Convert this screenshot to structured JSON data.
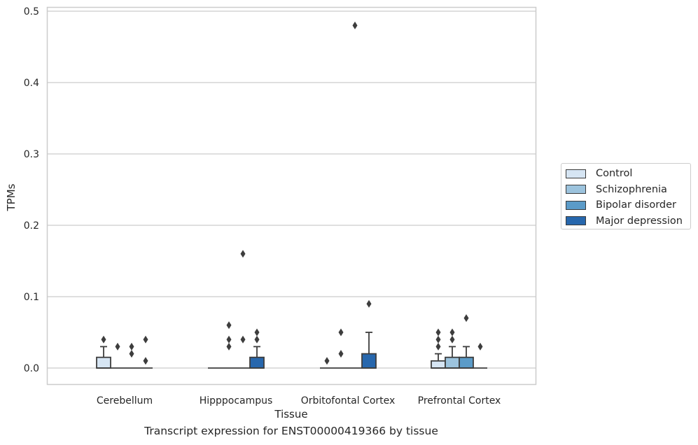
{
  "chart_data": {
    "type": "box",
    "caption": "Transcript expression for ENST00000419366 by tissue",
    "xlabel": "Tissue",
    "ylabel": "TPMs",
    "ylim": [
      -0.023,
      0.505
    ],
    "yticks": [
      0.0,
      0.1,
      0.2,
      0.3,
      0.4,
      0.5
    ],
    "ytick_labels": [
      "0.0",
      "0.1",
      "0.2",
      "0.3",
      "0.4",
      "0.5"
    ],
    "grid": "horizontal",
    "legend_position": "right",
    "categories": [
      "Cerebellum",
      "Hipppocampus",
      "Orbitofontal Cortex",
      "Prefrontal Cortex"
    ],
    "series": [
      {
        "name": "Control",
        "color": "#d6e5f3",
        "boxes": [
          {
            "q1": 0.0,
            "median": 0.0,
            "q3": 0.015,
            "whisker_low": 0.0,
            "whisker_high": 0.03,
            "outliers": [
              0.04
            ]
          },
          {
            "q1": 0.0,
            "median": 0.0,
            "q3": 0.0,
            "whisker_low": 0.0,
            "whisker_high": 0.0,
            "outliers": []
          },
          {
            "q1": 0.0,
            "median": 0.0,
            "q3": 0.0,
            "whisker_low": 0.0,
            "whisker_high": 0.0,
            "outliers": [
              0.01
            ]
          },
          {
            "q1": 0.0,
            "median": 0.0,
            "q3": 0.01,
            "whisker_low": 0.0,
            "whisker_high": 0.02,
            "outliers": [
              0.03,
              0.04,
              0.05
            ]
          }
        ]
      },
      {
        "name": "Schizophrenia",
        "color": "#9cc3dd",
        "boxes": [
          {
            "q1": 0.0,
            "median": 0.0,
            "q3": 0.0,
            "whisker_low": 0.0,
            "whisker_high": 0.0,
            "outliers": [
              0.03
            ]
          },
          {
            "q1": 0.0,
            "median": 0.0,
            "q3": 0.0,
            "whisker_low": 0.0,
            "whisker_high": 0.0,
            "outliers": [
              0.03,
              0.04,
              0.06
            ]
          },
          {
            "q1": 0.0,
            "median": 0.0,
            "q3": 0.0,
            "whisker_low": 0.0,
            "whisker_high": 0.0,
            "outliers": [
              0.02,
              0.05
            ]
          },
          {
            "q1": 0.0,
            "median": 0.0,
            "q3": 0.015,
            "whisker_low": 0.0,
            "whisker_high": 0.03,
            "outliers": [
              0.04,
              0.05
            ]
          }
        ]
      },
      {
        "name": "Bipolar disorder",
        "color": "#5b9bc8",
        "boxes": [
          {
            "q1": 0.0,
            "median": 0.0,
            "q3": 0.0,
            "whisker_low": 0.0,
            "whisker_high": 0.0,
            "outliers": [
              0.02,
              0.03
            ]
          },
          {
            "q1": 0.0,
            "median": 0.0,
            "q3": 0.0,
            "whisker_low": 0.0,
            "whisker_high": 0.0,
            "outliers": [
              0.04,
              0.16
            ]
          },
          {
            "q1": 0.0,
            "median": 0.0,
            "q3": 0.0,
            "whisker_low": 0.0,
            "whisker_high": 0.0,
            "outliers": [
              0.48
            ]
          },
          {
            "q1": 0.0,
            "median": 0.0,
            "q3": 0.015,
            "whisker_low": 0.0,
            "whisker_high": 0.03,
            "outliers": [
              0.07
            ]
          }
        ]
      },
      {
        "name": "Major depression",
        "color": "#2767ad",
        "boxes": [
          {
            "q1": 0.0,
            "median": 0.0,
            "q3": 0.0,
            "whisker_low": 0.0,
            "whisker_high": 0.0,
            "outliers": [
              0.01,
              0.04
            ]
          },
          {
            "q1": 0.0,
            "median": 0.0,
            "q3": 0.015,
            "whisker_low": 0.0,
            "whisker_high": 0.03,
            "outliers": [
              0.04,
              0.05
            ]
          },
          {
            "q1": 0.0,
            "median": 0.0,
            "q3": 0.02,
            "whisker_low": 0.0,
            "whisker_high": 0.05,
            "outliers": [
              0.09
            ]
          },
          {
            "q1": 0.0,
            "median": 0.0,
            "q3": 0.0,
            "whisker_low": 0.0,
            "whisker_high": 0.0,
            "outliers": [
              0.03
            ]
          }
        ]
      }
    ]
  }
}
